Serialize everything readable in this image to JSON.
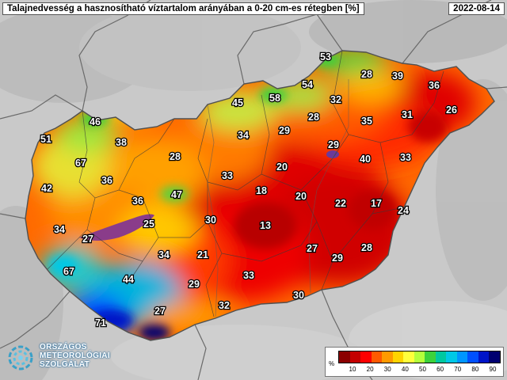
{
  "title": "Talajnedvesség a hasznosítható víztartalom arányában a 0-20 cm-es rétegben [%]",
  "date": "2022-08-14",
  "legend": {
    "unit": "%",
    "ticks": [
      "10",
      "20",
      "30",
      "40",
      "50",
      "60",
      "70",
      "80",
      "90"
    ],
    "colors": [
      "#8b0000",
      "#c40000",
      "#ff0000",
      "#ff5a00",
      "#ff9a00",
      "#ffd400",
      "#ffff3c",
      "#b4ff3c",
      "#3cd23c",
      "#00c8a0",
      "#00c8e6",
      "#0096ff",
      "#0050ff",
      "#0014c8",
      "#000070"
    ]
  },
  "values": [
    {
      "label": "53"
    },
    {
      "label": "28"
    },
    {
      "label": "39"
    },
    {
      "label": "36"
    },
    {
      "label": "54"
    },
    {
      "label": "58"
    },
    {
      "label": "45"
    },
    {
      "label": "32"
    },
    {
      "label": "26"
    },
    {
      "label": "35"
    },
    {
      "label": "31"
    },
    {
      "label": "28"
    },
    {
      "label": "46"
    },
    {
      "label": "29"
    },
    {
      "label": "34"
    },
    {
      "label": "51"
    },
    {
      "label": "38"
    },
    {
      "label": "29"
    },
    {
      "label": "28"
    },
    {
      "label": "67"
    },
    {
      "label": "40"
    },
    {
      "label": "33"
    },
    {
      "label": "20"
    },
    {
      "label": "33"
    },
    {
      "label": "36"
    },
    {
      "label": "18"
    },
    {
      "label": "20"
    },
    {
      "label": "42"
    },
    {
      "label": "47"
    },
    {
      "label": "36"
    },
    {
      "label": "22"
    },
    {
      "label": "17"
    },
    {
      "label": "24"
    },
    {
      "label": "30"
    },
    {
      "label": "25"
    },
    {
      "label": "13"
    },
    {
      "label": "34"
    },
    {
      "label": "27"
    },
    {
      "label": "27"
    },
    {
      "label": "28"
    },
    {
      "label": "34"
    },
    {
      "label": "21"
    },
    {
      "label": "29"
    },
    {
      "label": "67"
    },
    {
      "label": "44"
    },
    {
      "label": "33"
    },
    {
      "label": "29"
    },
    {
      "label": "30"
    },
    {
      "label": "32"
    },
    {
      "label": "27"
    },
    {
      "label": "71"
    }
  ],
  "logo": {
    "line1": "ORSZÁGOS",
    "line2": "METEOROLÓGIAI",
    "line3": "SZOLGÁLAT"
  }
}
